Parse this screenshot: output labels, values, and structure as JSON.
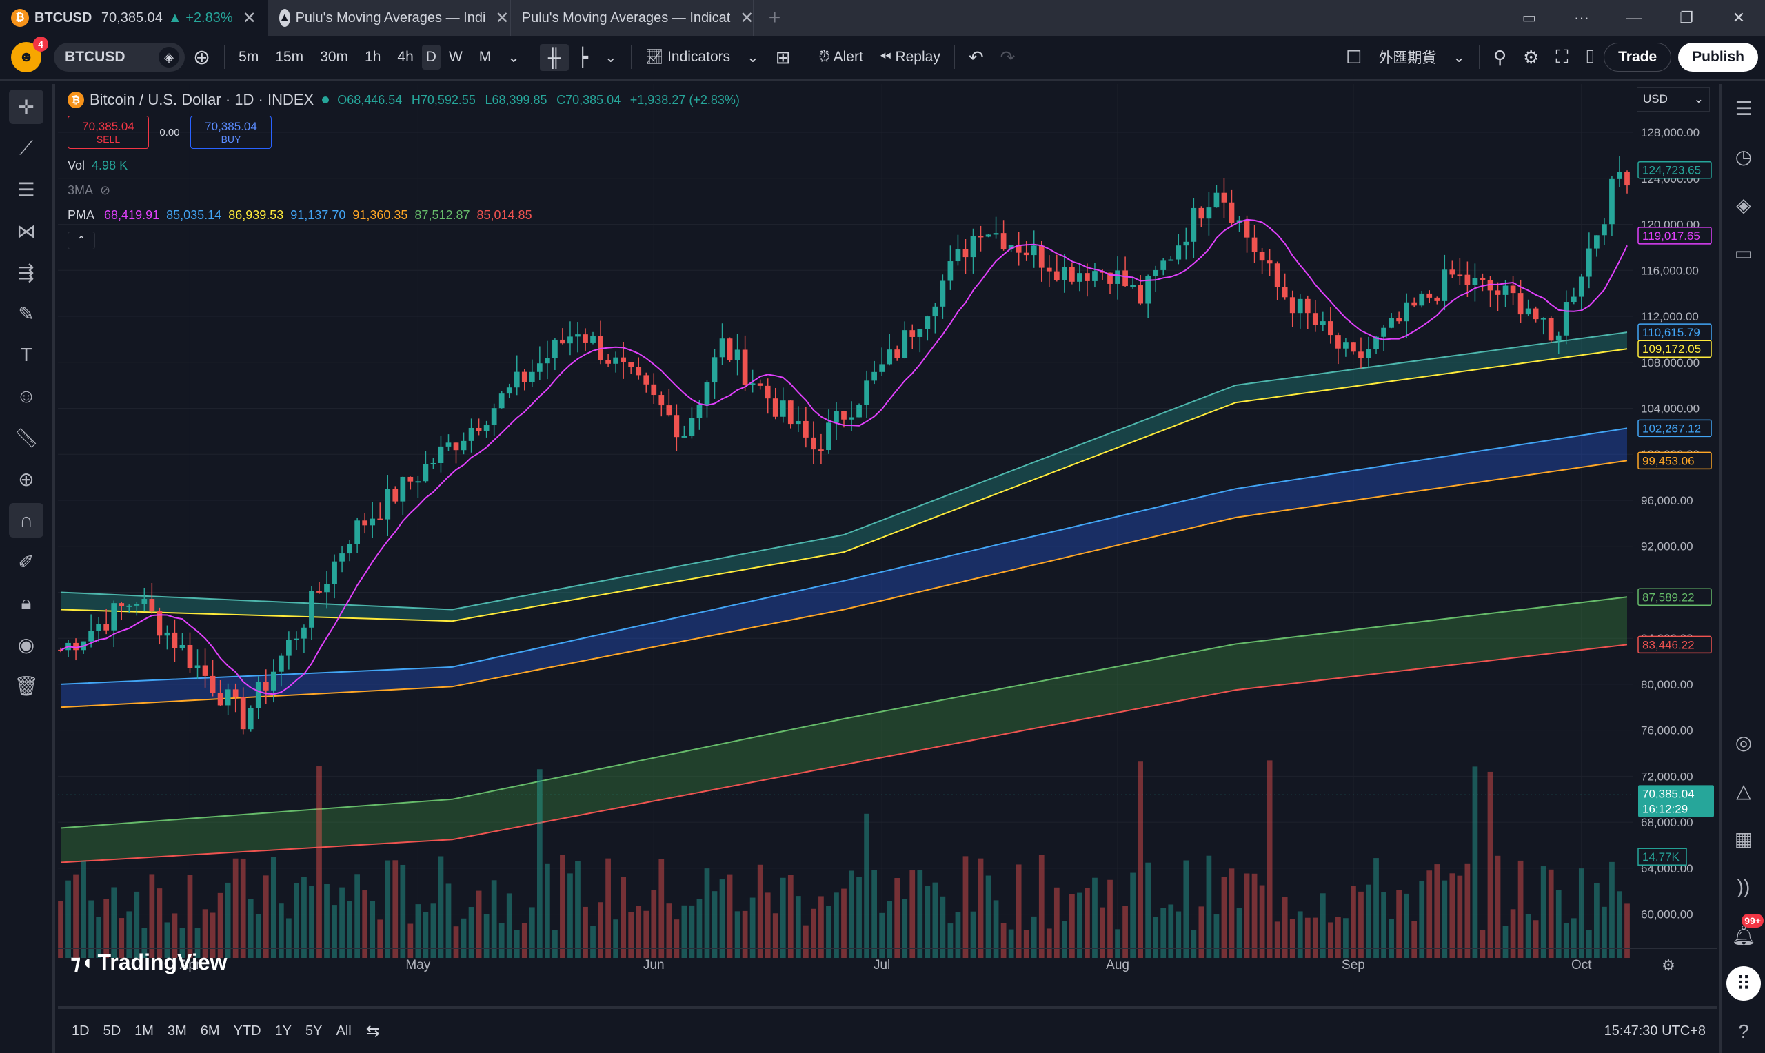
{
  "tabs": [
    {
      "icon": "bitcoin-icon",
      "symbol": "BTCUSD",
      "price": "70,385.04",
      "change": "▲ +2.83%"
    },
    {
      "icon": "pine-icon",
      "label": "Pulu's Moving Averages — Indi"
    },
    {
      "label": "Pulu's Moving Averages — Indicat"
    }
  ],
  "toolbar": {
    "badge": "4",
    "symbol": "BTCUSD",
    "intervals": [
      "5m",
      "15m",
      "30m",
      "1h",
      "4h",
      "D",
      "W",
      "M"
    ],
    "selected_interval": "D",
    "indicators": "Indicators",
    "alert": "Alert",
    "replay": "Replay",
    "exchange": "外匯期貨",
    "trade": "Trade",
    "publish": "Publish"
  },
  "legend": {
    "title": "Bitcoin / U.S. Dollar · 1D · INDEX",
    "o": "O68,446.54",
    "h": "H70,592.55",
    "l": "L68,399.85",
    "c": "C70,385.04",
    "chg": "+1,938.27 (+2.83%)",
    "sell_price": "70,385.04",
    "sell": "SELL",
    "spread": "0.00",
    "buy_price": "70,385.04",
    "buy": "BUY",
    "vol_label": "Vol",
    "vol": "4.98 K",
    "ma_label": "3MA",
    "pma_label": "PMA",
    "pma_values": [
      {
        "v": "68,419.91",
        "color": "#e040fb"
      },
      {
        "v": "85,035.14",
        "color": "#42a5f5"
      },
      {
        "v": "86,939.53",
        "color": "#ffeb3b"
      },
      {
        "v": "91,137.70",
        "color": "#42a5f5"
      },
      {
        "v": "91,360.35",
        "color": "#ffa726"
      },
      {
        "v": "87,512.87",
        "color": "#66bb6a"
      },
      {
        "v": "85,014.85",
        "color": "#ef5350"
      }
    ]
  },
  "currency": "USD",
  "yaxis": [
    "128,000.00",
    "124,000.00",
    "120,000.00",
    "116,000.00",
    "112,000.00",
    "108,000.00",
    "104,000.00",
    "100,000.00",
    "96,000.00",
    "92,000.00",
    "88,000.00",
    "84,000.00",
    "80,000.00",
    "76,000.00",
    "72,000.00",
    "68,000.00",
    "64,000.00",
    "60,000.00"
  ],
  "price_labels": [
    {
      "v": "124,723.65",
      "color": "#26a69a",
      "y": 124723.65
    },
    {
      "v": "119,017.65",
      "color": "#e040fb",
      "y": 119017.65
    },
    {
      "v": "110,615.79",
      "color": "#42a5f5",
      "y": 110615.79
    },
    {
      "v": "109,172.05",
      "color": "#ffeb3b",
      "y": 109172.05
    },
    {
      "v": "102,267.12",
      "color": "#42a5f5",
      "y": 102267.12
    },
    {
      "v": "99,453.06",
      "color": "#ffa726",
      "y": 99453.06
    },
    {
      "v": "87,589.22",
      "color": "#66bb6a",
      "y": 87589.22
    },
    {
      "v": "83,446.22",
      "color": "#ef5350",
      "y": 83446.22
    }
  ],
  "last_price": {
    "v": "70,385.04",
    "t": "16:12:29"
  },
  "vol_label": "14.77K",
  "xaxis": [
    "Apr",
    "May",
    "Jun",
    "Jul",
    "Aug",
    "Sep",
    "Oct"
  ],
  "brand": "TradingView",
  "ranges": [
    "1D",
    "5D",
    "1M",
    "3M",
    "6M",
    "YTD",
    "1Y",
    "5Y",
    "All"
  ],
  "clock": "15:47:30 UTC+8",
  "notif": "99+",
  "chart_data": {
    "type": "candlestick",
    "ylim": [
      58000,
      131000
    ],
    "x_start": "2025-03-15",
    "x_end": "2025-10-07",
    "anchors": [
      [
        "2025-03-15",
        83000
      ],
      [
        "2025-03-25",
        87500
      ],
      [
        "2025-04-08",
        77000
      ],
      [
        "2025-04-15",
        84500
      ],
      [
        "2025-04-22",
        93000
      ],
      [
        "2025-05-09",
        103000
      ],
      [
        "2025-05-22",
        111000
      ],
      [
        "2025-06-05",
        102000
      ],
      [
        "2025-06-10",
        109500
      ],
      [
        "2025-06-22",
        100500
      ],
      [
        "2025-07-03",
        109000
      ],
      [
        "2025-07-14",
        120000
      ],
      [
        "2025-07-25",
        116000
      ],
      [
        "2025-07-31",
        116000
      ],
      [
        "2025-08-04",
        113500
      ],
      [
        "2025-08-14",
        123500
      ],
      [
        "2025-08-22",
        114500
      ],
      [
        "2025-09-01",
        108000
      ],
      [
        "2025-09-14",
        115500
      ],
      [
        "2025-09-24",
        113000
      ],
      [
        "2025-09-27",
        109500
      ],
      [
        "2025-10-06",
        124500
      ]
    ],
    "bands": [
      {
        "color": "#26a69a",
        "upper": [
          88000,
          86500,
          93000,
          106000,
          110615
        ],
        "lower": [
          86500,
          85500,
          91500,
          104500,
          109172
        ],
        "upper_color": "#4db6ac",
        "lower_color": "#ffeb3b"
      },
      {
        "color": "#2962ff",
        "upper": [
          80000,
          81500,
          89000,
          97000,
          102267
        ],
        "lower": [
          78000,
          79800,
          86500,
          94500,
          99453
        ],
        "upper_color": "#42a5f5",
        "lower_color": "#ffa726"
      },
      {
        "color": "#43a047",
        "upper": [
          67500,
          70000,
          77000,
          83500,
          87589
        ],
        "lower": [
          64500,
          66500,
          73000,
          79500,
          83446
        ],
        "upper_color": "#66bb6a",
        "lower_color": "#ef5350"
      }
    ]
  }
}
